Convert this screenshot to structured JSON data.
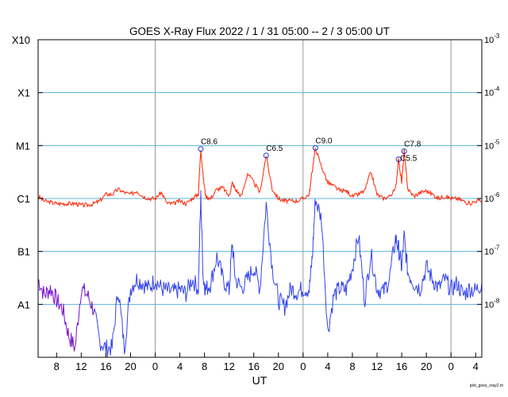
{
  "chart_data": {
    "type": "line",
    "title": "GOES X-Ray Flux   2022 /  1 / 31   05:00 --  2 /  3   05:00   UT",
    "xlabel": "UT",
    "x_range_hours_from_start": [
      0,
      72
    ],
    "x_tick_labels": [
      "8",
      "12",
      "16",
      "20",
      "0",
      "4",
      "8",
      "12",
      "16",
      "20",
      "0",
      "4",
      "8",
      "12",
      "16",
      "20",
      "0",
      "4"
    ],
    "y_scale": "log",
    "ylim": [
      1e-09,
      0.001
    ],
    "y_left_tick_labels": [
      "X10",
      "X1",
      "M1",
      "C1",
      "B1",
      "A1"
    ],
    "y_right_tick_labels": [
      "10^-3",
      "10^-4",
      "10^-5",
      "10^-6",
      "10^-7",
      "10^-8"
    ],
    "grid": "horizontal class lines at 1e-4..1e-8, vertical lines at day boundaries",
    "credit": "plot_goes_xray2.m",
    "colors": {
      "long_channel": "#ff2200",
      "short_channel": "#3344ee",
      "short_channel_alt": "#7a10c8",
      "grid": "#5ab4dc",
      "day_line": "#9a9a9a",
      "marker": "#2233cc"
    },
    "series": [
      {
        "x": [
          0,
          1,
          2,
          3,
          4,
          5,
          6,
          7,
          8,
          9,
          10,
          11,
          12,
          13,
          14,
          15,
          16,
          17,
          18,
          19,
          20,
          21,
          22,
          23,
          24,
          25,
          26,
          26.4,
          26.8,
          27.2,
          28,
          29,
          30,
          31,
          31.5,
          32,
          33,
          34,
          35,
          36,
          37,
          38,
          39,
          40,
          41,
          42,
          43,
          44,
          44.5,
          45,
          46,
          47,
          48,
          49,
          50,
          51,
          52,
          53,
          54,
          55,
          56,
          57,
          58,
          58.5,
          59,
          59.4,
          60,
          61,
          62,
          63,
          64,
          65,
          66,
          67,
          68,
          69,
          70,
          71,
          72
        ],
        "values": [
          1.1e-06,
          9e-07,
          8.5e-07,
          8e-07,
          8e-07,
          8e-07,
          8e-07,
          7.5e-07,
          7.5e-07,
          8e-07,
          9e-07,
          1.2e-06,
          1.2e-06,
          1.5e-06,
          1.3e-06,
          1.2e-06,
          1.4e-06,
          1.1e-06,
          1e-06,
          1e-06,
          1.3e-06,
          8e-07,
          8e-07,
          9e-07,
          8e-07,
          1e-06,
          1.2e-06,
          8.6e-06,
          2.5e-06,
          1.1e-06,
          1e-06,
          1.5e-06,
          1.6e-06,
          1.1e-06,
          2e-06,
          1.5e-06,
          1.1e-06,
          3e-06,
          2e-06,
          1.3e-06,
          6.5e-06,
          1.5e-06,
          1e-06,
          9e-07,
          9e-07,
          9e-07,
          1e-06,
          1.2e-06,
          3.5e-06,
          9e-06,
          4e-06,
          2e-06,
          1.7e-06,
          1.4e-06,
          1.4e-06,
          1.1e-06,
          1.2e-06,
          1.4e-06,
          3.2e-06,
          1.2e-06,
          1e-06,
          1.1e-06,
          1.5e-06,
          5.5e-06,
          2e-06,
          7.8e-06,
          1.5e-06,
          1.1e-06,
          1.3e-06,
          1.4e-06,
          1.2e-06,
          1e-06,
          1.1e-06,
          1e-06,
          1e-06,
          9e-07,
          8e-07,
          9e-07,
          9e-07
        ]
      },
      {
        "x": [
          0,
          1,
          2,
          3,
          4,
          5,
          6,
          7,
          8,
          9,
          10,
          11,
          12,
          13,
          14,
          15,
          16,
          17,
          18,
          19,
          20,
          21,
          22,
          23,
          24,
          25,
          26,
          26.4,
          26.8,
          27.2,
          28,
          29,
          30,
          31,
          31.5,
          32,
          33,
          34,
          35,
          36,
          37,
          38,
          39,
          40,
          41,
          42,
          43,
          44,
          44.5,
          45,
          46,
          47,
          48,
          49,
          50,
          51,
          52,
          53,
          54,
          55,
          56,
          57,
          58,
          58.5,
          59,
          59.4,
          60,
          61,
          62,
          63,
          64,
          65,
          66,
          67,
          68,
          69,
          70,
          71,
          72
        ],
        "values": [
          3e-08,
          1.5e-08,
          2e-08,
          1.2e-08,
          8e-09,
          2.5e-09,
          1.5e-09,
          2e-08,
          1.5e-08,
          8e-09,
          2e-09,
          1.5e-09,
          1.5e-09,
          2e-08,
          1.5e-09,
          2e-08,
          3e-08,
          2.5e-08,
          2e-08,
          3e-08,
          2e-08,
          1.8e-08,
          1.7e-08,
          1.9e-08,
          1.6e-08,
          3e-08,
          2e-08,
          1.1e-06,
          3e-08,
          1.9e-08,
          2.5e-08,
          8e-08,
          3e-08,
          1.8e-08,
          1.5e-07,
          3e-08,
          2e-08,
          3e-08,
          5e-08,
          2e-08,
          8e-07,
          5e-08,
          1.2e-08,
          9e-09,
          2e-08,
          1.7e-08,
          2e-08,
          1.9e-08,
          8e-08,
          1e-06,
          4e-07,
          3e-09,
          1.5e-08,
          2e-08,
          1.9e-08,
          5e-08,
          2e-07,
          1.2e-08,
          9e-08,
          2e-08,
          1.7e-08,
          3e-08,
          1.8e-07,
          1.1e-07,
          5e-08,
          1.9e-07,
          4e-08,
          2.5e-08,
          2e-08,
          5e-08,
          3e-08,
          2e-08,
          3e-08,
          1.9e-08,
          2.5e-08,
          1.5e-08,
          2e-08,
          1.8e-08,
          2.5e-08
        ]
      }
    ],
    "annotations": [
      {
        "label": "C8.6",
        "x": 26.4,
        "value": 8.6e-06
      },
      {
        "label": "C6.5",
        "x": 37,
        "value": 6.5e-06
      },
      {
        "label": "C9.0",
        "x": 45,
        "value": 9e-06
      },
      {
        "label": "C5.5",
        "x": 58.5,
        "value": 5.5e-06
      },
      {
        "label": "C7.8",
        "x": 59.4,
        "value": 7.8e-06
      }
    ]
  }
}
